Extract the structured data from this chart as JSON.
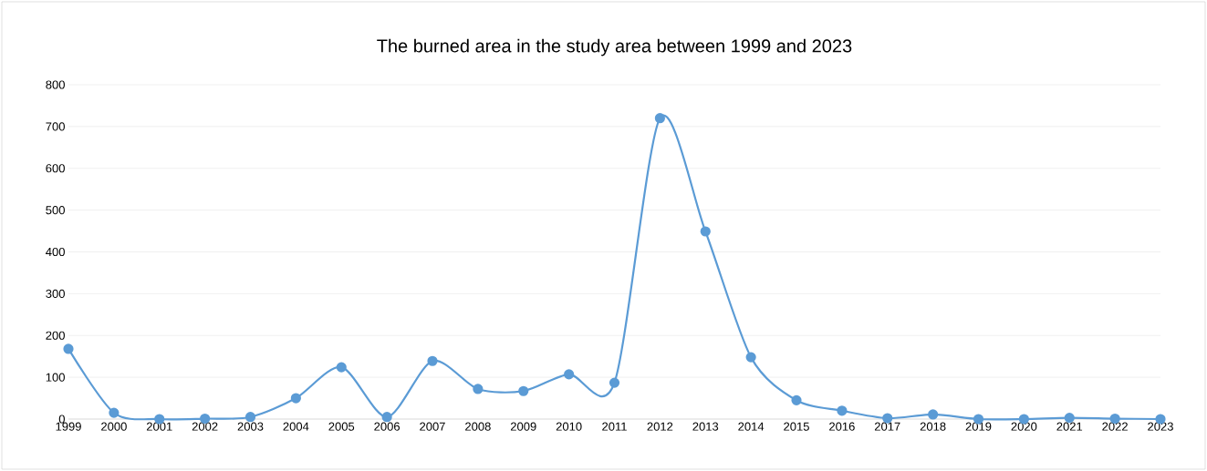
{
  "chart_data": {
    "type": "line",
    "title": "The burned area in the study area between 1999 and 2023",
    "categories": [
      "1999",
      "2000",
      "2001",
      "2002",
      "2003",
      "2004",
      "2005",
      "2006",
      "2007",
      "2008",
      "2009",
      "2010",
      "2011",
      "2012",
      "2013",
      "2014",
      "2015",
      "2016",
      "2017",
      "2018",
      "2019",
      "2020",
      "2021",
      "2022",
      "2023"
    ],
    "series": [
      {
        "color": "#5b9bd5",
        "values": [
          168,
          15,
          0,
          1,
          5,
          50,
          124,
          5,
          139,
          72,
          67,
          107,
          87,
          720,
          449,
          148,
          45,
          20,
          2,
          11,
          0,
          0,
          3,
          1,
          0
        ]
      }
    ],
    "ylim": [
      0,
      800
    ],
    "yticks": [
      0,
      100,
      200,
      300,
      400,
      500,
      600,
      700,
      800
    ],
    "grid": "y",
    "marker": "circle",
    "line_style": "solid"
  }
}
